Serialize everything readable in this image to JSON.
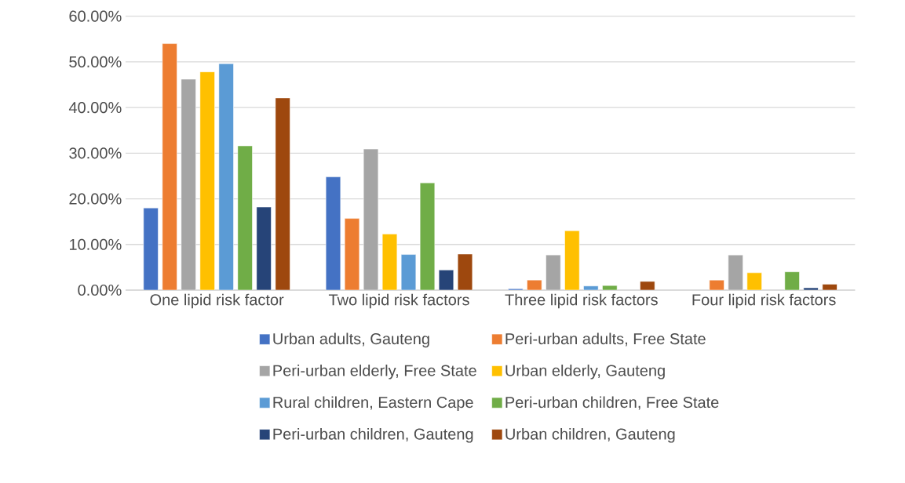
{
  "chart_data": {
    "type": "bar",
    "categories": [
      "One lipid risk factor",
      "Two lipid risk factors",
      "Three lipid risk factors",
      "Four lipid risk factors"
    ],
    "series": [
      {
        "name": "Urban adults, Gauteng",
        "color": "#4472c4",
        "values": [
          18.0,
          24.8,
          0.3,
          null
        ]
      },
      {
        "name": "Peri-urban adults, Free State",
        "color": "#ed7d31",
        "values": [
          54.0,
          15.7,
          2.2,
          2.2
        ]
      },
      {
        "name": "Peri-urban elderly, Free State",
        "color": "#a5a5a5",
        "values": [
          46.2,
          30.9,
          7.7,
          7.7
        ]
      },
      {
        "name": "Urban elderly, Gauteng",
        "color": "#ffc000",
        "values": [
          47.8,
          12.3,
          13.0,
          3.8
        ]
      },
      {
        "name": "Rural children, Eastern Cape",
        "color": "#5b9bd5",
        "values": [
          49.6,
          7.8,
          0.9,
          null
        ]
      },
      {
        "name": "Peri-urban children, Free State",
        "color": "#70ad47",
        "values": [
          31.6,
          23.5,
          1.0,
          4.0
        ]
      },
      {
        "name": "Peri-urban children, Gauteng",
        "color": "#264478",
        "values": [
          18.2,
          4.4,
          null,
          0.5
        ]
      },
      {
        "name": "Urban children, Gauteng",
        "color": "#9e480e",
        "values": [
          42.1,
          7.9,
          1.9,
          1.3
        ]
      }
    ],
    "ylim": [
      0,
      60
    ],
    "yticks": [
      {
        "value": 0,
        "label": "0.00%"
      },
      {
        "value": 10,
        "label": "10.00%"
      },
      {
        "value": 20,
        "label": "20.00%"
      },
      {
        "value": 30,
        "label": "30.00%"
      },
      {
        "value": 40,
        "label": "40.00%"
      },
      {
        "value": 50,
        "label": "50.00%"
      },
      {
        "value": 60,
        "label": "60.00%"
      }
    ],
    "grid": "y",
    "legend": "bottom"
  }
}
